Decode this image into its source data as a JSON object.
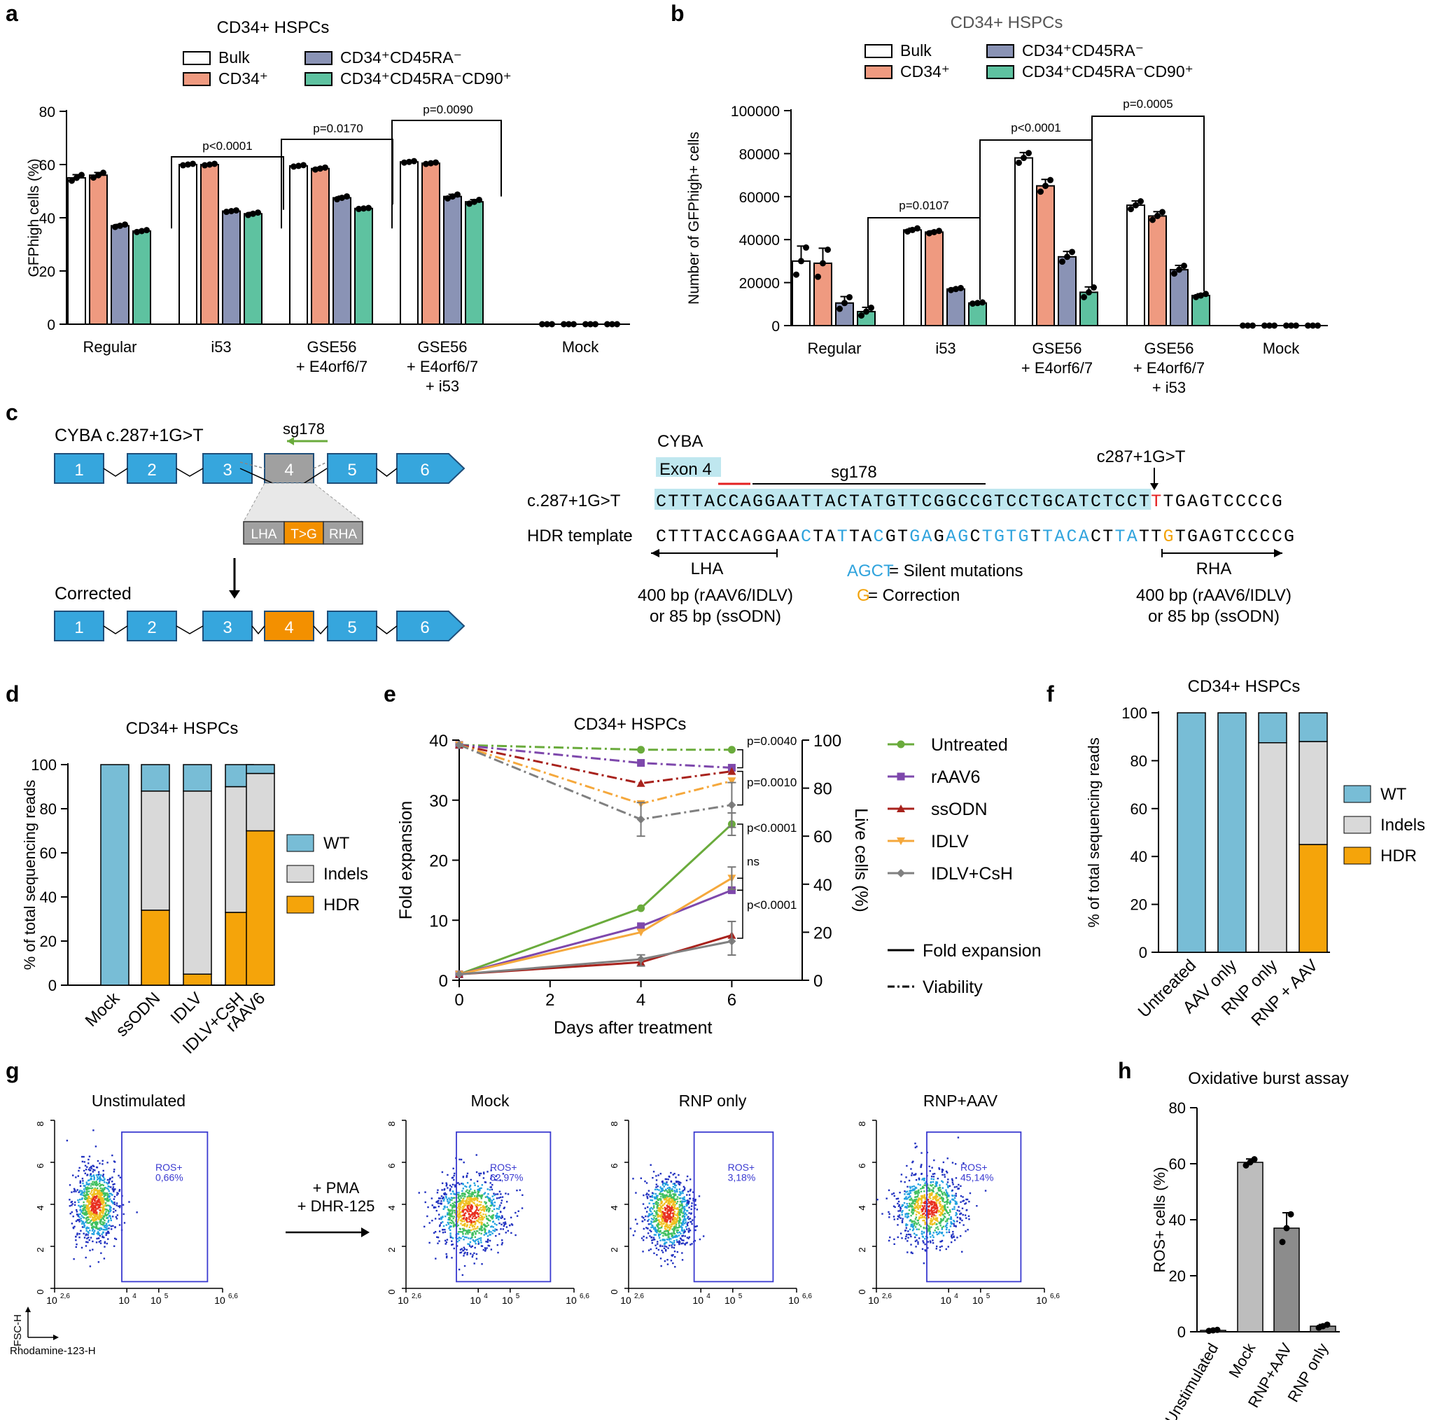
{
  "colors": {
    "bulk": "#ffffff",
    "cd34": "#ef9a80",
    "cd45": "#8a93b5",
    "cd90": "#5ec2a0",
    "wt": "#78bdd6",
    "indels": "#d9d9d9",
    "hdr": "#f5a40a",
    "exon": "#36a6dd",
    "exon_grey": "#a0a0a0",
    "exon_orange": "#f39000",
    "silent": "#2fa3dd",
    "correction": "#f2a20a",
    "mut": "#e32020",
    "untreated": "#6aab3c",
    "raav6": "#7e48ac",
    "ssodn": "#a8221c",
    "idlv": "#f5a83c",
    "idlvcsh": "#808080",
    "gate": "#3a3ad0",
    "hl": "#bfe7ef"
  },
  "panel_letters": [
    "a",
    "b",
    "c",
    "d",
    "e",
    "f",
    "g",
    "h"
  ],
  "panelA": {
    "title": "CD34+ HSPCs",
    "legend": [
      "Bulk",
      "CD34⁺",
      "CD34⁺CD45RA⁻",
      "CD34⁺CD45RA⁻CD90⁺"
    ],
    "ylabel": "GFPhigh cells (%)",
    "yticks": [
      "0",
      "20",
      "40",
      "60",
      "80"
    ],
    "groups": [
      "Regular",
      "i53",
      "GSE56\n+ E4orf6/7",
      "GSE56\n+ E4orf6/7\n+ i53",
      "Mock"
    ],
    "pvals": [
      "p<0.0001",
      "p=0.0170",
      "p=0.0090"
    ]
  },
  "panelB": {
    "title": "CD34+ HSPCs",
    "legend": [
      "Bulk",
      "CD34⁺",
      "CD34⁺CD45RA⁻",
      "CD34⁺CD45RA⁻CD90⁺"
    ],
    "ylabel": "Number of GFPhigh+ cells",
    "yticks": [
      "0",
      "20000",
      "40000",
      "60000",
      "80000",
      "100000"
    ],
    "groups": [
      "Regular",
      "i53",
      "GSE56\n+ E4orf6/7",
      "GSE56\n+ E4orf6/7\n+ i53",
      "Mock"
    ],
    "pvals": [
      "p=0.0107",
      "p<0.0001",
      "p=0.0005"
    ]
  },
  "panelC": {
    "allele": "CYBA c.287+1G>T",
    "guide": "sg178",
    "exons": [
      "1",
      "2",
      "3",
      "4",
      "5",
      "6"
    ],
    "lha": "LHA",
    "tg": "T>G",
    "rha": "RHA",
    "corrected": "Corrected",
    "gene": "CYBA",
    "exon4": "Exon 4",
    "mutation_label": "c287+1G>T",
    "row1_label": "c.287+1G>T",
    "row1_seq": "CTTTACCAGGAATTACTATGTTCGGCCGTCCTGCATCTCCTTTGAGTCCCCG",
    "row2_label": "HDR template",
    "row2_seq": "CTTTACCAGGAACTATTACGTGAGAGCTGTGTTACACTTATTGTGAGTCCCCG",
    "lha_len": "400 bp (rAAV6/IDLV)\nor 85 bp (ssODN)",
    "rha_len": "400 bp (rAAV6/IDLV)\nor 85 bp (ssODN)",
    "silent_key": "AGCT",
    "silent_text": " = Silent mutations",
    "corr_key": "G",
    "corr_text": " = Correction"
  },
  "panelD": {
    "title": "CD34+ HSPCs",
    "ylabel": "% of total sequencing reads",
    "yticks": [
      "0",
      "20",
      "40",
      "60",
      "80",
      "100"
    ],
    "legend": [
      "WT",
      "Indels",
      "HDR"
    ]
  },
  "panelE": {
    "title": "CD34+ HSPCs",
    "ylabel_left": "Fold expansion",
    "ylabel_right": "Live cells (%)",
    "xlabel": "Days after treatment",
    "xticks": [
      "0",
      "2",
      "4",
      "6"
    ],
    "yticks_left": [
      "0",
      "10",
      "20",
      "30",
      "40"
    ],
    "yticks_right": [
      "0",
      "20",
      "40",
      "60",
      "80",
      "100"
    ],
    "pvals": [
      "p=0.0040",
      "p=0.0010",
      "p<0.0001",
      "ns",
      "p<0.0001"
    ],
    "linestyles": [
      "Fold expansion",
      "Viability"
    ]
  },
  "panelF": {
    "title": "CD34+ HSPCs",
    "ylabel": "% of total sequencing reads",
    "yticks": [
      "0",
      "20",
      "40",
      "60",
      "80",
      "100"
    ],
    "legend": [
      "WT",
      "Indels",
      "HDR"
    ]
  },
  "panelG": {
    "titles": [
      "Unstimulated",
      "Mock",
      "RNP only",
      "RNP+AAV"
    ],
    "gate_labels": [
      "ROS+\n0,66%",
      "ROS+\n62,97%",
      "ROS+\n3,18%",
      "ROS+\n45,14%"
    ],
    "stim": "+ PMA\n+ DHR-125",
    "yticks": [
      "0",
      "2",
      "4",
      "6",
      "8"
    ],
    "xticks": [
      "10^2,6",
      "10^4",
      "10^5",
      "10^6,6"
    ],
    "ylabel": "FSC-H",
    "xlabel": "Rhodamine-123-H"
  },
  "panelH": {
    "title": "Oxidative burst assay",
    "ylabel": "ROS+ cells (%)",
    "yticks": [
      "0",
      "20",
      "40",
      "60",
      "80"
    ]
  },
  "chart_data": [
    {
      "type": "bar",
      "panel": "a",
      "title": "CD34+ HSPCs",
      "ylabel": "GFPhigh cells (%)",
      "ylim": [
        0,
        80
      ],
      "categories": [
        "Regular",
        "i53",
        "GSE56 + E4orf6/7",
        "GSE56 + E4orf6/7 + i53",
        "Mock"
      ],
      "series": [
        {
          "name": "Bulk",
          "values": [
            55,
            60,
            59.5,
            61,
            0
          ],
          "err": [
            1.2,
            0.3,
            0.3,
            0.3,
            0
          ]
        },
        {
          "name": "CD34+",
          "values": [
            56,
            60,
            58.5,
            60.5,
            0
          ],
          "err": [
            1.0,
            0.3,
            0.4,
            0.3,
            0
          ]
        },
        {
          "name": "CD34+CD45RA-",
          "values": [
            37,
            42.5,
            47.5,
            48,
            0
          ],
          "err": [
            0.5,
            0.3,
            0.6,
            0.8,
            0
          ]
        },
        {
          "name": "CD34+CD45RA-CD90+",
          "values": [
            35,
            41.5,
            43.5,
            46,
            0
          ],
          "err": [
            0.4,
            0.5,
            0.2,
            0.8,
            0
          ]
        }
      ]
    },
    {
      "type": "bar",
      "panel": "b",
      "title": "CD34+ HSPCs",
      "ylabel": "Number of GFPhigh+ cells",
      "ylim": [
        0,
        100000
      ],
      "categories": [
        "Regular",
        "i53",
        "GSE56 + E4orf6/7",
        "GSE56 + E4orf6/7 + i53",
        "Mock"
      ],
      "series": [
        {
          "name": "Bulk",
          "values": [
            30000,
            44500,
            78000,
            56000,
            0
          ],
          "err": [
            7000,
            800,
            2500,
            2000,
            0
          ]
        },
        {
          "name": "CD34+",
          "values": [
            29000,
            43500,
            65000,
            51000,
            0
          ],
          "err": [
            7000,
            600,
            3000,
            2000,
            0
          ]
        },
        {
          "name": "CD34+CD45RA-",
          "values": [
            10500,
            17000,
            32000,
            26000,
            0
          ],
          "err": [
            3000,
            500,
            2500,
            2000,
            0
          ]
        },
        {
          "name": "CD34+CD45RA-CD90+",
          "values": [
            6500,
            10500,
            15500,
            14000,
            0
          ],
          "err": [
            2000,
            300,
            2500,
            800,
            0
          ]
        }
      ]
    },
    {
      "type": "bar",
      "panel": "d",
      "stacked": true,
      "title": "CD34+ HSPCs",
      "ylabel": "% of total sequencing reads",
      "ylim": [
        0,
        100
      ],
      "categories": [
        "Mock",
        "ssODN",
        "IDLV",
        "IDLV+CsH",
        "rAAV6"
      ],
      "series": [
        {
          "name": "HDR",
          "values": [
            0,
            34,
            5,
            33,
            70
          ]
        },
        {
          "name": "Indels",
          "values": [
            0,
            54,
            83,
            57,
            26
          ]
        },
        {
          "name": "WT",
          "values": [
            100,
            12,
            12,
            10,
            4
          ]
        }
      ]
    },
    {
      "type": "line",
      "panel": "e",
      "title": "CD34+ HSPCs",
      "xlabel": "Days after treatment",
      "ylabel": "Fold expansion",
      "ylabel_right": "Live cells (%)",
      "x": [
        0,
        4,
        6
      ],
      "ylim": [
        0,
        40
      ],
      "ylim_right": [
        0,
        100
      ],
      "series": [
        {
          "name": "Untreated",
          "fold": [
            1,
            12,
            26
          ],
          "viability": [
            98,
            96,
            96
          ]
        },
        {
          "name": "rAAV6",
          "fold": [
            1,
            9,
            15
          ],
          "viability": [
            98,
            90.5,
            88.5
          ]
        },
        {
          "name": "ssODN",
          "fold": [
            1,
            3,
            7.5
          ],
          "viability": [
            98,
            82,
            87
          ]
        },
        {
          "name": "IDLV",
          "fold": [
            1,
            8,
            17
          ],
          "viability": [
            98,
            73.5,
            83
          ]
        },
        {
          "name": "IDLV+CsH",
          "fold": [
            1,
            3.5,
            6.5
          ],
          "viability": [
            98,
            67,
            73
          ]
        }
      ]
    },
    {
      "type": "bar",
      "panel": "f",
      "stacked": true,
      "title": "CD34+ HSPCs",
      "ylabel": "% of total sequencing reads",
      "ylim": [
        0,
        100
      ],
      "categories": [
        "Untreated",
        "AAV only",
        "RNP only",
        "RNP + AAV"
      ],
      "series": [
        {
          "name": "HDR",
          "values": [
            0,
            0,
            0,
            45
          ]
        },
        {
          "name": "Indels",
          "values": [
            0,
            0,
            87.5,
            43
          ]
        },
        {
          "name": "WT",
          "values": [
            100,
            100,
            12.5,
            12
          ]
        }
      ]
    },
    {
      "type": "bar",
      "panel": "h",
      "title": "Oxidative burst assay",
      "ylabel": "ROS+ cells (%)",
      "ylim": [
        0,
        80
      ],
      "categories": [
        "Unstimulated",
        "Mock",
        "RNP+AAV",
        "RNP only"
      ],
      "values": [
        0.5,
        60.5,
        37,
        2
      ],
      "err": [
        0.2,
        1.2,
        5.5,
        0.6
      ]
    },
    {
      "type": "scatter",
      "panel": "g",
      "title": "Flow cytometry: Rhodamine-123-H vs FSC-H",
      "gates": [
        {
          "sample": "Unstimulated",
          "ROS+": "0,66%"
        },
        {
          "sample": "Mock",
          "ROS+": "62,97%"
        },
        {
          "sample": "RNP only",
          "ROS+": "3,18%"
        },
        {
          "sample": "RNP+AAV",
          "ROS+": "45,14%"
        }
      ]
    }
  ]
}
